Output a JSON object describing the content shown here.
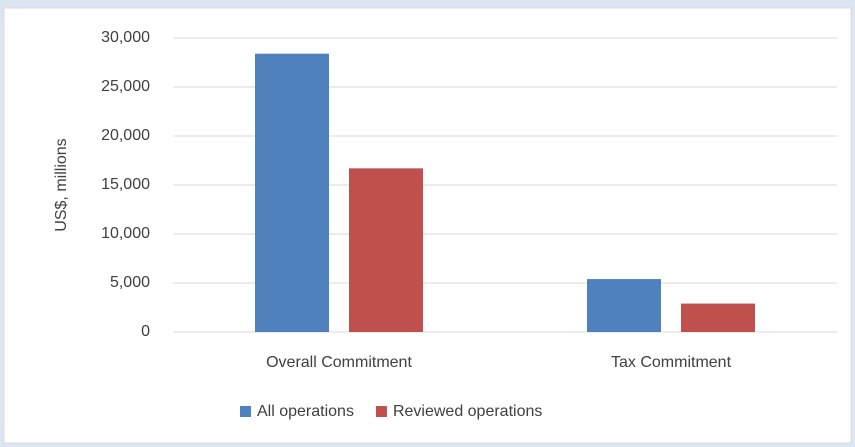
{
  "chart_data": {
    "type": "bar",
    "y_label": "US$, millions",
    "categories": [
      "Overall Commitment",
      "Tax Commitment"
    ],
    "series": [
      {
        "name": "All operations",
        "color": "#4f81bd",
        "values": [
          28400,
          5400
        ]
      },
      {
        "name": "Reviewed operations",
        "color": "#c0504d",
        "values": [
          16700,
          2900
        ]
      }
    ],
    "ylim": [
      0,
      30000
    ],
    "yticks": [
      0,
      {
        "value": 5000,
        "label": "5,000"
      },
      {
        "value": 10000,
        "label": "10,000"
      },
      {
        "value": 15000,
        "label": "15,000"
      },
      {
        "value": 20000,
        "label": "20,000"
      },
      {
        "value": 25000,
        "label": "25,000"
      },
      {
        "value": 30000,
        "label": "30,000"
      }
    ],
    "grid": true,
    "legend": "bottom"
  }
}
